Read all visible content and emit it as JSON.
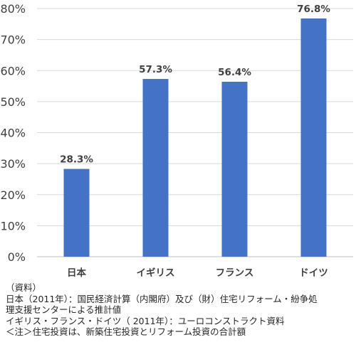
{
  "chart_data": {
    "type": "bar",
    "categories": [
      "日本",
      "イギリス",
      "フランス",
      "ドイツ"
    ],
    "values": [
      28.3,
      57.3,
      56.4,
      76.8
    ],
    "data_labels": [
      "28.3%",
      "57.3%",
      "56.4%",
      "76.8%"
    ],
    "ylim": [
      0,
      80
    ],
    "yticks": [
      "0%",
      "10%",
      "20%",
      "30%",
      "40%",
      "50%",
      "60%",
      "70%",
      "80%"
    ],
    "grid": true,
    "legend": "none",
    "bar_color": "#4472C4"
  },
  "notes": [
    "（資料）",
    "日本（2011年）：国民経済計算（内閣府）及び（財）住宅リフォーム・紛争処",
    "理支援センターによる推計値",
    "イギリス・フランス・ドイツ（ 2011年）：ユーロコンストラクト資料",
    "＜注＞住宅投資は、新築住宅投資とリフォーム投資の合計額"
  ]
}
